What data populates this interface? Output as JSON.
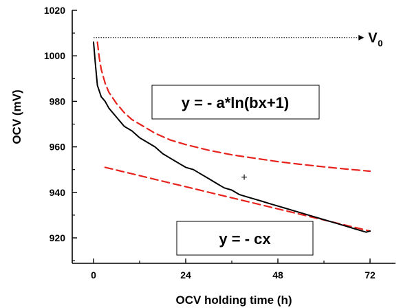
{
  "chart_data": {
    "type": "line",
    "xlabel": "OCV holding time (h)",
    "ylabel": "OCV (mV)",
    "xlim": [
      -6,
      79
    ],
    "ylim": [
      911,
      1020
    ],
    "xticks": [
      0,
      24,
      48,
      72
    ],
    "yticks": [
      920,
      940,
      960,
      980,
      1000,
      1020
    ],
    "grid": false,
    "series": [
      {
        "style": "solid",
        "color": "#000000",
        "x": [
          0,
          0.5,
          1,
          2,
          3,
          4,
          6,
          8,
          10,
          12,
          14,
          16,
          18,
          20,
          22,
          24,
          26,
          28,
          30,
          32,
          34,
          36,
          38,
          40,
          42,
          44,
          46,
          48,
          50,
          52,
          54,
          56,
          58,
          60,
          62,
          64,
          66,
          68,
          70,
          71,
          72
        ],
        "y": [
          1006,
          996,
          987,
          982,
          980,
          977,
          973,
          969,
          967,
          964,
          962,
          960,
          957,
          955,
          953,
          951,
          950,
          948,
          946,
          944,
          942,
          941,
          939,
          938,
          937,
          936,
          935,
          934,
          933,
          932,
          931,
          930,
          929,
          928,
          927,
          926,
          925,
          924,
          923,
          922.5,
          923
        ]
      },
      {
        "style": "dashed",
        "color": "#e8221c",
        "x": [
          1,
          1.5,
          2,
          3,
          4,
          6,
          8,
          10,
          12,
          16,
          20,
          24,
          30,
          36,
          42,
          48,
          54,
          60,
          66,
          72
        ],
        "y": [
          1006,
          999,
          994,
          988,
          984,
          979,
          975,
          972,
          970,
          966,
          963,
          961,
          958.5,
          956.5,
          955,
          953.5,
          952.3,
          951.2,
          950.2,
          949.3
        ]
      },
      {
        "style": "dashed",
        "color": "#e8221c",
        "x": [
          3,
          72
        ],
        "y": [
          951,
          923
        ]
      }
    ],
    "reference_line": {
      "label": "V",
      "subscript": "0",
      "y": 1008,
      "x_start": 0,
      "x_end": 69
    },
    "annotations": [
      {
        "text": "y = - a*ln(bx+1)"
      },
      {
        "text": "y = - cx"
      },
      {
        "text": "+"
      }
    ]
  }
}
